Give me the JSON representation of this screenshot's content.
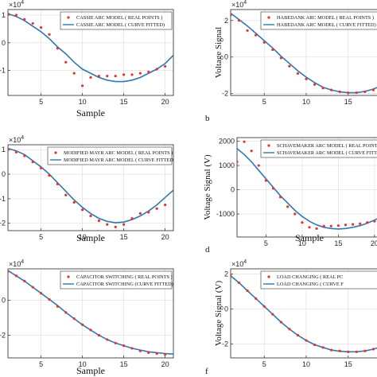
{
  "chart_data": [
    {
      "type": "scatter",
      "panel": "a",
      "xlabel": "Sample",
      "ylabel": "",
      "exponent": "4",
      "xlim": [
        1,
        21
      ],
      "ylim": [
        -1.9,
        1.2
      ],
      "xticks": [
        "5",
        "10",
        "15",
        "20"
      ],
      "xtick_values": [
        5,
        10,
        15,
        20
      ],
      "yticks": [
        "1",
        "0",
        "-1"
      ],
      "ytick_values": [
        1,
        0,
        -1
      ],
      "grid": true,
      "legend": "top-right",
      "series": [
        {
          "name": "CASSIE ARC MODEL ( REAL POINTS )",
          "kind": "points",
          "color": "#e8332e",
          "x": [
            1,
            2,
            3,
            4,
            5,
            6,
            7,
            8,
            9,
            10,
            11,
            12,
            13,
            14,
            15,
            16,
            17,
            18,
            19,
            20
          ],
          "y": [
            1.05,
            1.0,
            0.85,
            0.7,
            0.55,
            0.3,
            -0.2,
            -0.7,
            -1.1,
            -1.55,
            -1.25,
            -1.2,
            -1.2,
            -1.2,
            -1.15,
            -1.15,
            -1.1,
            -1.05,
            -0.95,
            -0.85
          ]
        },
        {
          "name": "CASSIE ARC MODEL ( CURVE FITTED)",
          "kind": "line",
          "color": "#2f78b0",
          "x": [
            1,
            2,
            3,
            4,
            5,
            6,
            7,
            8,
            9,
            10,
            11,
            12,
            13,
            14,
            15,
            16,
            17,
            18,
            19,
            20,
            21
          ],
          "y": [
            1.05,
            0.95,
            0.8,
            0.6,
            0.4,
            0.15,
            -0.15,
            -0.4,
            -0.7,
            -0.95,
            -1.1,
            -1.25,
            -1.35,
            -1.4,
            -1.4,
            -1.35,
            -1.25,
            -1.1,
            -0.95,
            -0.75,
            -0.45
          ]
        }
      ]
    },
    {
      "type": "scatter",
      "panel": "b",
      "panel_label": "b",
      "xlabel": "",
      "ylabel": "Voltage Signal",
      "exponent": "4",
      "xlim": [
        1,
        19
      ],
      "ylim": [
        -2.1,
        2.6
      ],
      "xticks": [
        "5",
        "10",
        "15"
      ],
      "xtick_values": [
        5,
        10,
        15
      ],
      "yticks": [
        "2",
        "0",
        "-2"
      ],
      "ytick_values": [
        2,
        0,
        -2
      ],
      "grid": true,
      "legend": "top-right",
      "series": [
        {
          "name": "HABEDANK ARC MODEL ( REAL POINTS )",
          "kind": "points",
          "color": "#e8332e",
          "x": [
            1,
            2,
            3,
            4,
            5,
            6,
            7,
            8,
            9,
            10,
            11,
            12,
            13,
            14,
            15,
            16,
            17,
            18,
            19
          ],
          "y": [
            2.3,
            2.0,
            1.45,
            1.2,
            0.8,
            0.4,
            -0.05,
            -0.5,
            -0.9,
            -1.2,
            -1.5,
            -1.7,
            -1.8,
            -1.9,
            -1.95,
            -1.95,
            -1.9,
            -1.8,
            -1.6
          ]
        },
        {
          "name": "HABEDANK ARC MODEL ( CURVE FITTED)",
          "kind": "line",
          "color": "#2f78b0",
          "x": [
            1,
            2,
            3,
            4,
            5,
            6,
            7,
            8,
            9,
            10,
            11,
            12,
            13,
            14,
            15,
            16,
            17,
            18,
            19
          ],
          "y": [
            2.4,
            2.05,
            1.7,
            1.3,
            0.9,
            0.5,
            0.05,
            -0.35,
            -0.75,
            -1.1,
            -1.4,
            -1.65,
            -1.8,
            -1.9,
            -1.95,
            -1.95,
            -1.88,
            -1.75,
            -1.55
          ]
        }
      ]
    },
    {
      "type": "scatter",
      "panel": "c",
      "xlabel": "Sample",
      "ylabel": "",
      "exponent": "4",
      "xlim": [
        1,
        21
      ],
      "ylim": [
        -2.3,
        1.2
      ],
      "xticks": [
        "5",
        "10",
        "15",
        "20"
      ],
      "xtick_values": [
        5,
        10,
        15,
        20
      ],
      "yticks": [
        "1",
        "0",
        "-1",
        "-2"
      ],
      "ytick_values": [
        1,
        0,
        -1,
        -2
      ],
      "grid": true,
      "legend": "top-right",
      "series": [
        {
          "name": "MODIFIED MAYR ARC MODEL ( REAL POINTS )",
          "kind": "points",
          "color": "#e8332e",
          "x": [
            1,
            2,
            3,
            4,
            5,
            6,
            7,
            8,
            9,
            10,
            11,
            12,
            13,
            14,
            15,
            16,
            17,
            18,
            19,
            20
          ],
          "y": [
            1.0,
            0.9,
            0.75,
            0.5,
            0.25,
            -0.05,
            -0.4,
            -0.85,
            -1.15,
            -1.45,
            -1.7,
            -1.9,
            -2.05,
            -2.15,
            -2.05,
            -1.8,
            -1.6,
            -1.55,
            -1.4,
            -1.25
          ]
        },
        {
          "name": "MODIFIED MAYR ARC MODEL ( CURVE FITTED)",
          "kind": "line",
          "color": "#2f78b0",
          "x": [
            1,
            2,
            3,
            4,
            5,
            6,
            7,
            8,
            9,
            10,
            11,
            12,
            13,
            14,
            15,
            16,
            17,
            18,
            19,
            20,
            21
          ],
          "y": [
            1.05,
            0.95,
            0.8,
            0.55,
            0.3,
            0.0,
            -0.35,
            -0.7,
            -1.05,
            -1.35,
            -1.6,
            -1.8,
            -1.92,
            -1.98,
            -1.95,
            -1.85,
            -1.7,
            -1.5,
            -1.25,
            -0.95,
            -0.65
          ]
        }
      ]
    },
    {
      "type": "scatter",
      "panel": "d",
      "panel_label": "d",
      "xlabel": "Sample",
      "ylabel": "Voltage Signal (V)",
      "exponent": "",
      "xlim": [
        1,
        21
      ],
      "ylim": [
        -1950,
        2150
      ],
      "xticks": [
        "5",
        "10",
        "15",
        "20"
      ],
      "xtick_values": [
        5,
        10,
        15,
        20
      ],
      "yticks": [
        "2000",
        "1000",
        "0",
        "-1000"
      ],
      "ytick_values": [
        2000,
        1000,
        0,
        -1000
      ],
      "grid": true,
      "legend": "top-right",
      "series": [
        {
          "name": "SCHAVEMAKER ARC MODEL ( REAL POINTS )",
          "kind": "points",
          "color": "#e8332e",
          "x": [
            1,
            2,
            3,
            4,
            5,
            6,
            7,
            8,
            9,
            10,
            11,
            12,
            13,
            14,
            15,
            16,
            17,
            18,
            19,
            20
          ],
          "y": [
            1150,
            1980,
            1600,
            1000,
            380,
            60,
            -300,
            -700,
            -1000,
            -1350,
            -1550,
            -1600,
            -1500,
            -1500,
            -1480,
            -1450,
            -1430,
            -1400,
            -1350,
            -1300
          ]
        },
        {
          "name": "SCHAVEMAKER ARC MODEL ( CURVE FITTED)",
          "kind": "line",
          "color": "#2f78b0",
          "x": [
            1,
            2,
            3,
            4,
            5,
            6,
            7,
            8,
            9,
            10,
            11,
            12,
            13,
            14,
            15,
            16,
            17,
            18,
            19,
            20,
            21
          ],
          "y": [
            1700,
            1450,
            1150,
            800,
            450,
            100,
            -250,
            -550,
            -850,
            -1100,
            -1300,
            -1450,
            -1550,
            -1600,
            -1620,
            -1600,
            -1550,
            -1480,
            -1380,
            -1250,
            -1100
          ]
        }
      ]
    },
    {
      "type": "scatter",
      "panel": "e",
      "xlabel": "Sample",
      "ylabel": "",
      "exponent": "4",
      "xlim": [
        1,
        21
      ],
      "ylim": [
        -3.3,
        1.8
      ],
      "xticks": [
        "5",
        "10",
        "15",
        "20"
      ],
      "xtick_values": [
        5,
        10,
        15,
        20
      ],
      "yticks": [
        "0",
        "-2"
      ],
      "ytick_values": [
        0,
        -2
      ],
      "grid": true,
      "legend": "top-right",
      "series": [
        {
          "name": "CAPACITOR SWITCHING ( REAL POINTS )",
          "kind": "points",
          "color": "#e8332e",
          "x": [
            1,
            2,
            3,
            4,
            5,
            6,
            7,
            8,
            9,
            10,
            11,
            12,
            13,
            14,
            15,
            16,
            17,
            18,
            19,
            20
          ],
          "y": [
            1.65,
            1.4,
            1.1,
            0.75,
            0.4,
            0.05,
            -0.35,
            -0.7,
            -1.05,
            -1.4,
            -1.7,
            -2.0,
            -2.25,
            -2.45,
            -2.6,
            -2.75,
            -2.9,
            -3.0,
            -3.05,
            -3.1
          ]
        },
        {
          "name": "CAPACITOR SWITCHING (CURVE FITTED)",
          "kind": "line",
          "color": "#2f78b0",
          "x": [
            1,
            2,
            3,
            4,
            5,
            6,
            7,
            8,
            9,
            10,
            11,
            12,
            13,
            14,
            15,
            16,
            17,
            18,
            19,
            20,
            21
          ],
          "y": [
            1.7,
            1.4,
            1.1,
            0.75,
            0.4,
            0.05,
            -0.3,
            -0.7,
            -1.05,
            -1.4,
            -1.7,
            -2.0,
            -2.25,
            -2.45,
            -2.6,
            -2.75,
            -2.85,
            -2.95,
            -3.0,
            -3.05,
            -3.08
          ]
        }
      ]
    },
    {
      "type": "scatter",
      "panel": "f",
      "panel_label": "f",
      "xlabel": "",
      "ylabel": "Voltage Signal (V)",
      "exponent": "4",
      "xlim": [
        1,
        19
      ],
      "ylim": [
        -2.8,
        2.3
      ],
      "xticks": [
        "5",
        "10",
        "15"
      ],
      "xtick_values": [
        5,
        10,
        15
      ],
      "yticks": [
        "2",
        "0",
        "-2"
      ],
      "ytick_values": [
        2,
        0,
        -2
      ],
      "grid": true,
      "legend": "top-right",
      "series": [
        {
          "name": "LOAD CHANGING ( REAL PC",
          "kind": "points",
          "color": "#e8332e",
          "x": [
            1,
            2,
            3,
            4,
            5,
            6,
            7,
            8,
            9,
            10,
            11,
            12,
            13,
            14,
            15,
            16,
            17,
            18,
            19
          ],
          "y": [
            1.9,
            1.5,
            1.05,
            0.6,
            0.15,
            -0.3,
            -0.75,
            -1.15,
            -1.5,
            -1.8,
            -2.05,
            -2.2,
            -2.35,
            -2.4,
            -2.45,
            -2.45,
            -2.4,
            -2.3,
            -2.15
          ]
        },
        {
          "name": "LOAD CHANGING ( CURVE F",
          "kind": "line",
          "color": "#2f78b0",
          "x": [
            1,
            2,
            3,
            4,
            5,
            6,
            7,
            8,
            9,
            10,
            11,
            12,
            13,
            14,
            15,
            16,
            17,
            18,
            19
          ],
          "y": [
            1.9,
            1.5,
            1.05,
            0.6,
            0.15,
            -0.3,
            -0.75,
            -1.15,
            -1.5,
            -1.8,
            -2.05,
            -2.2,
            -2.35,
            -2.42,
            -2.45,
            -2.45,
            -2.4,
            -2.3,
            -2.15
          ]
        }
      ]
    }
  ]
}
